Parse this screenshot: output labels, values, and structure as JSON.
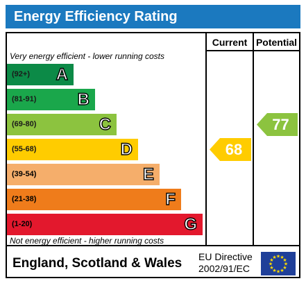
{
  "title": "Energy Efficiency Rating",
  "columns": {
    "current": "Current",
    "potential": "Potential"
  },
  "top_note": "Very energy efficient - lower running costs",
  "bottom_note": "Not energy efficient - higher running costs",
  "footer": {
    "region": "England, Scotland & Wales",
    "directive_line1": "EU Directive",
    "directive_line2": "2002/91/EC"
  },
  "chart_data": {
    "type": "bar",
    "categories": [
      "A",
      "B",
      "C",
      "D",
      "E",
      "F",
      "G"
    ],
    "ranges": [
      "(92+)",
      "(81-91)",
      "(69-80)",
      "(55-68)",
      "(39-54)",
      "(21-38)",
      "(1-20)"
    ],
    "colors": [
      "#0c8a47",
      "#1aa74b",
      "#8cc33f",
      "#ffcc00",
      "#f5ae6b",
      "#ef7c1b",
      "#e3182d"
    ],
    "current": {
      "value": 68,
      "band": "D",
      "color": "#ffcc00"
    },
    "potential": {
      "value": 77,
      "band": "C",
      "color": "#8cc33f"
    }
  },
  "colors": {
    "header": "#1b79bf",
    "eu_flag": "#1f3f99",
    "eu_stars": "#ffdd00"
  },
  "icons": {
    "flag": "eu-flag-icon"
  }
}
